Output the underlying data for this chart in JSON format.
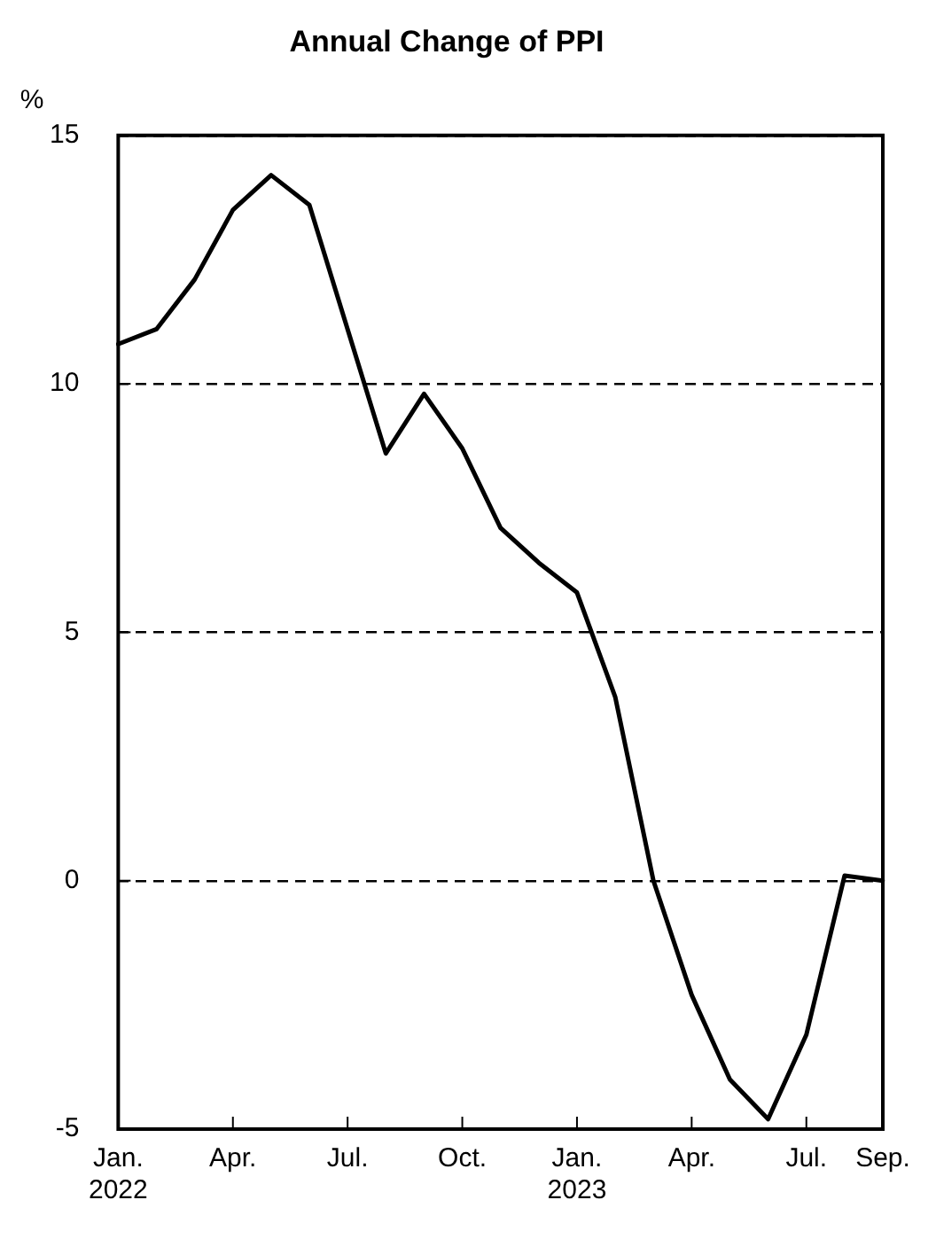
{
  "chart_data": {
    "type": "line",
    "title": "Annual Change of PPI",
    "ylabel": "%",
    "categories": [
      "Jan.\n2022",
      null,
      null,
      "Apr.",
      null,
      null,
      "Jul.",
      null,
      null,
      "Oct.",
      null,
      null,
      "Jan.\n2023",
      null,
      null,
      "Apr.",
      null,
      null,
      "Jul.",
      null,
      "Sep."
    ],
    "series": [
      {
        "color": "#000000",
        "values": [
          10.8,
          11.1,
          12.1,
          13.5,
          14.2,
          13.6,
          11.1,
          8.6,
          9.8,
          8.7,
          7.1,
          6.4,
          5.8,
          3.7,
          0.0,
          -2.3,
          -4.0,
          -4.8,
          -3.1,
          0.1,
          0.0
        ]
      }
    ],
    "ylim": [
      -5,
      15
    ],
    "yticks": [
      -5,
      0,
      5,
      10,
      15
    ],
    "grid": "y",
    "legend": false,
    "marker": "none",
    "line_style": "solid"
  }
}
